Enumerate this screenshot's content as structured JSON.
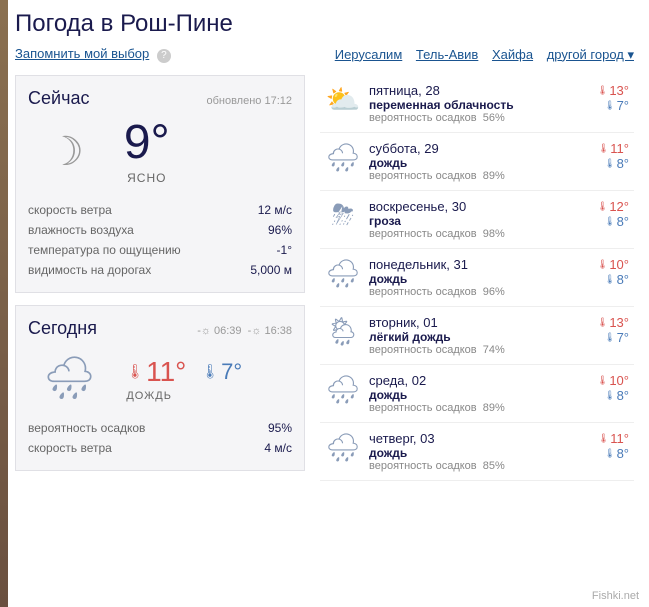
{
  "page": {
    "title": "Погода в Рош-Пине",
    "remember_label": "Запомнить мой выбор",
    "city_links": [
      "Иерусалим",
      "Тель-Авив",
      "Хайфа",
      "другой город ▾"
    ]
  },
  "now": {
    "title": "Сейчас",
    "updated": "обновлено 17:12",
    "temp": "9°",
    "condition": "ясно",
    "details": [
      {
        "label": "скорость ветра",
        "value": "12 м/с"
      },
      {
        "label": "влажность воздуха",
        "value": "96%"
      },
      {
        "label": "температура по ощущению",
        "value": "-1°"
      },
      {
        "label": "видимость на дорогах",
        "value": "5,000 м"
      }
    ]
  },
  "today": {
    "title": "Сегодня",
    "sunrise": "☼ 06:39",
    "sunset": "☼ 16:38",
    "hi": "11°",
    "lo": "7°",
    "condition": "дождь",
    "details": [
      {
        "label": "вероятность осадков",
        "value": "95%"
      },
      {
        "label": "скорость ветра",
        "value": "4 м/с"
      }
    ]
  },
  "forecast": [
    {
      "day": "пятница, 28",
      "condition": "переменная облачность",
      "prob_label": "вероятность осадков",
      "prob": "56%",
      "hi": "13°",
      "lo": "7°",
      "icon": "⛅"
    },
    {
      "day": "суббота, 29",
      "condition": "дождь",
      "prob_label": "вероятность осадков",
      "prob": "89%",
      "hi": "11°",
      "lo": "8°",
      "icon": "🌧"
    },
    {
      "day": "воскресенье, 30",
      "condition": "гроза",
      "prob_label": "вероятность осадков",
      "prob": "98%",
      "hi": "12°",
      "lo": "8°",
      "icon": "⛈"
    },
    {
      "day": "понедельник, 31",
      "condition": "дождь",
      "prob_label": "вероятность осадков",
      "prob": "96%",
      "hi": "10°",
      "lo": "8°",
      "icon": "🌧"
    },
    {
      "day": "вторник, 01",
      "condition": "лёгкий дождь",
      "prob_label": "вероятность осадков",
      "prob": "74%",
      "hi": "13°",
      "lo": "7°",
      "icon": "🌦"
    },
    {
      "day": "среда, 02",
      "condition": "дождь",
      "prob_label": "вероятность осадков",
      "prob": "89%",
      "hi": "10°",
      "lo": "8°",
      "icon": "🌧"
    },
    {
      "day": "четверг, 03",
      "condition": "дождь",
      "prob_label": "вероятность осадков",
      "prob": "85%",
      "hi": "11°",
      "lo": "8°",
      "icon": "🌧"
    }
  ],
  "watermark": "Fishki.net"
}
